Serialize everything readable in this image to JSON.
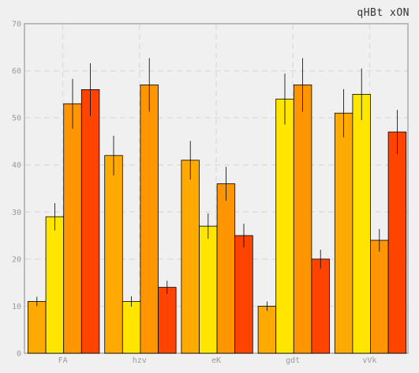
{
  "chart_data": {
    "type": "bar",
    "title": "qHBt xON",
    "xlabel": "",
    "ylabel": "",
    "categories": [
      "FA",
      "hzv",
      "eK",
      "gdt",
      "vVk"
    ],
    "ylim": [
      0,
      70
    ],
    "yticks": [
      0,
      10,
      20,
      30,
      40,
      50,
      60,
      70
    ],
    "grid": true,
    "series": [
      {
        "color": "#ffaa00",
        "values": [
          11,
          42,
          41,
          10,
          51
        ],
        "errors": [
          1,
          4.2,
          4.1,
          1,
          5.1
        ]
      },
      {
        "color": "#ffe600",
        "values": [
          29,
          11,
          27,
          54,
          55
        ],
        "errors": [
          2.9,
          1.1,
          2.7,
          5.4,
          5.5
        ]
      },
      {
        "color": "#ff9500",
        "values": [
          53,
          57,
          36,
          57,
          24
        ],
        "errors": [
          5.3,
          5.7,
          3.6,
          5.7,
          2.4
        ]
      },
      {
        "color": "#ff4400",
        "values": [
          56,
          14,
          25,
          20,
          47
        ],
        "errors": [
          5.6,
          1.4,
          2.5,
          2,
          4.7
        ]
      }
    ]
  }
}
